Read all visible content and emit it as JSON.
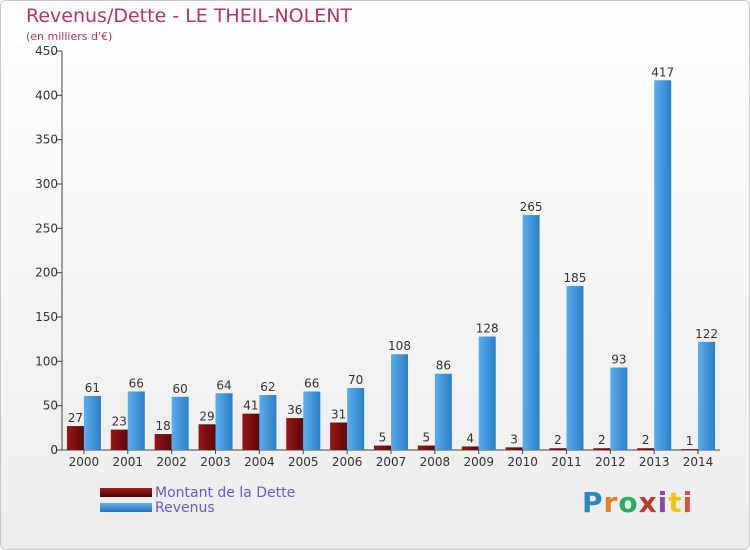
{
  "header": {
    "title": "Revenus/Dette - LE THEIL-NOLENT",
    "subtitle": "(en milliers d'€)"
  },
  "logo": {
    "text": "Proxiti",
    "colors": [
      "#2e86c1",
      "#e67e22",
      "#27ae60",
      "#c0392b",
      "#8e44ad",
      "#f1c40f",
      "#e74c3c"
    ]
  },
  "legend": {
    "items": [
      {
        "label": "Montant de la Dette",
        "color": "#7a0c0c"
      },
      {
        "label": "Revenus",
        "color": "#3a94db"
      }
    ]
  },
  "chart_data": {
    "type": "bar",
    "title": "Revenus/Dette - LE THEIL-NOLENT",
    "subtitle": "(en milliers d'€)",
    "categories": [
      "2000",
      "2001",
      "2002",
      "2003",
      "2004",
      "2005",
      "2006",
      "2007",
      "2008",
      "2009",
      "2010",
      "2011",
      "2012",
      "2013",
      "2014"
    ],
    "series": [
      {
        "name": "Montant de la Dette",
        "color": "#7a0c0c",
        "values": [
          27,
          23,
          18,
          29,
          41,
          36,
          31,
          5,
          5,
          4,
          3,
          2,
          2,
          2,
          1
        ]
      },
      {
        "name": "Revenus",
        "color": "#3a94db",
        "values": [
          61,
          66,
          60,
          64,
          62,
          66,
          70,
          108,
          86,
          128,
          265,
          185,
          93,
          417,
          122
        ]
      }
    ],
    "ylim": [
      0,
      450
    ],
    "yticks": [
      0,
      50,
      100,
      150,
      200,
      250,
      300,
      350,
      400,
      450
    ],
    "grid": false,
    "legend_position": "bottom-left",
    "data_labels": true
  }
}
